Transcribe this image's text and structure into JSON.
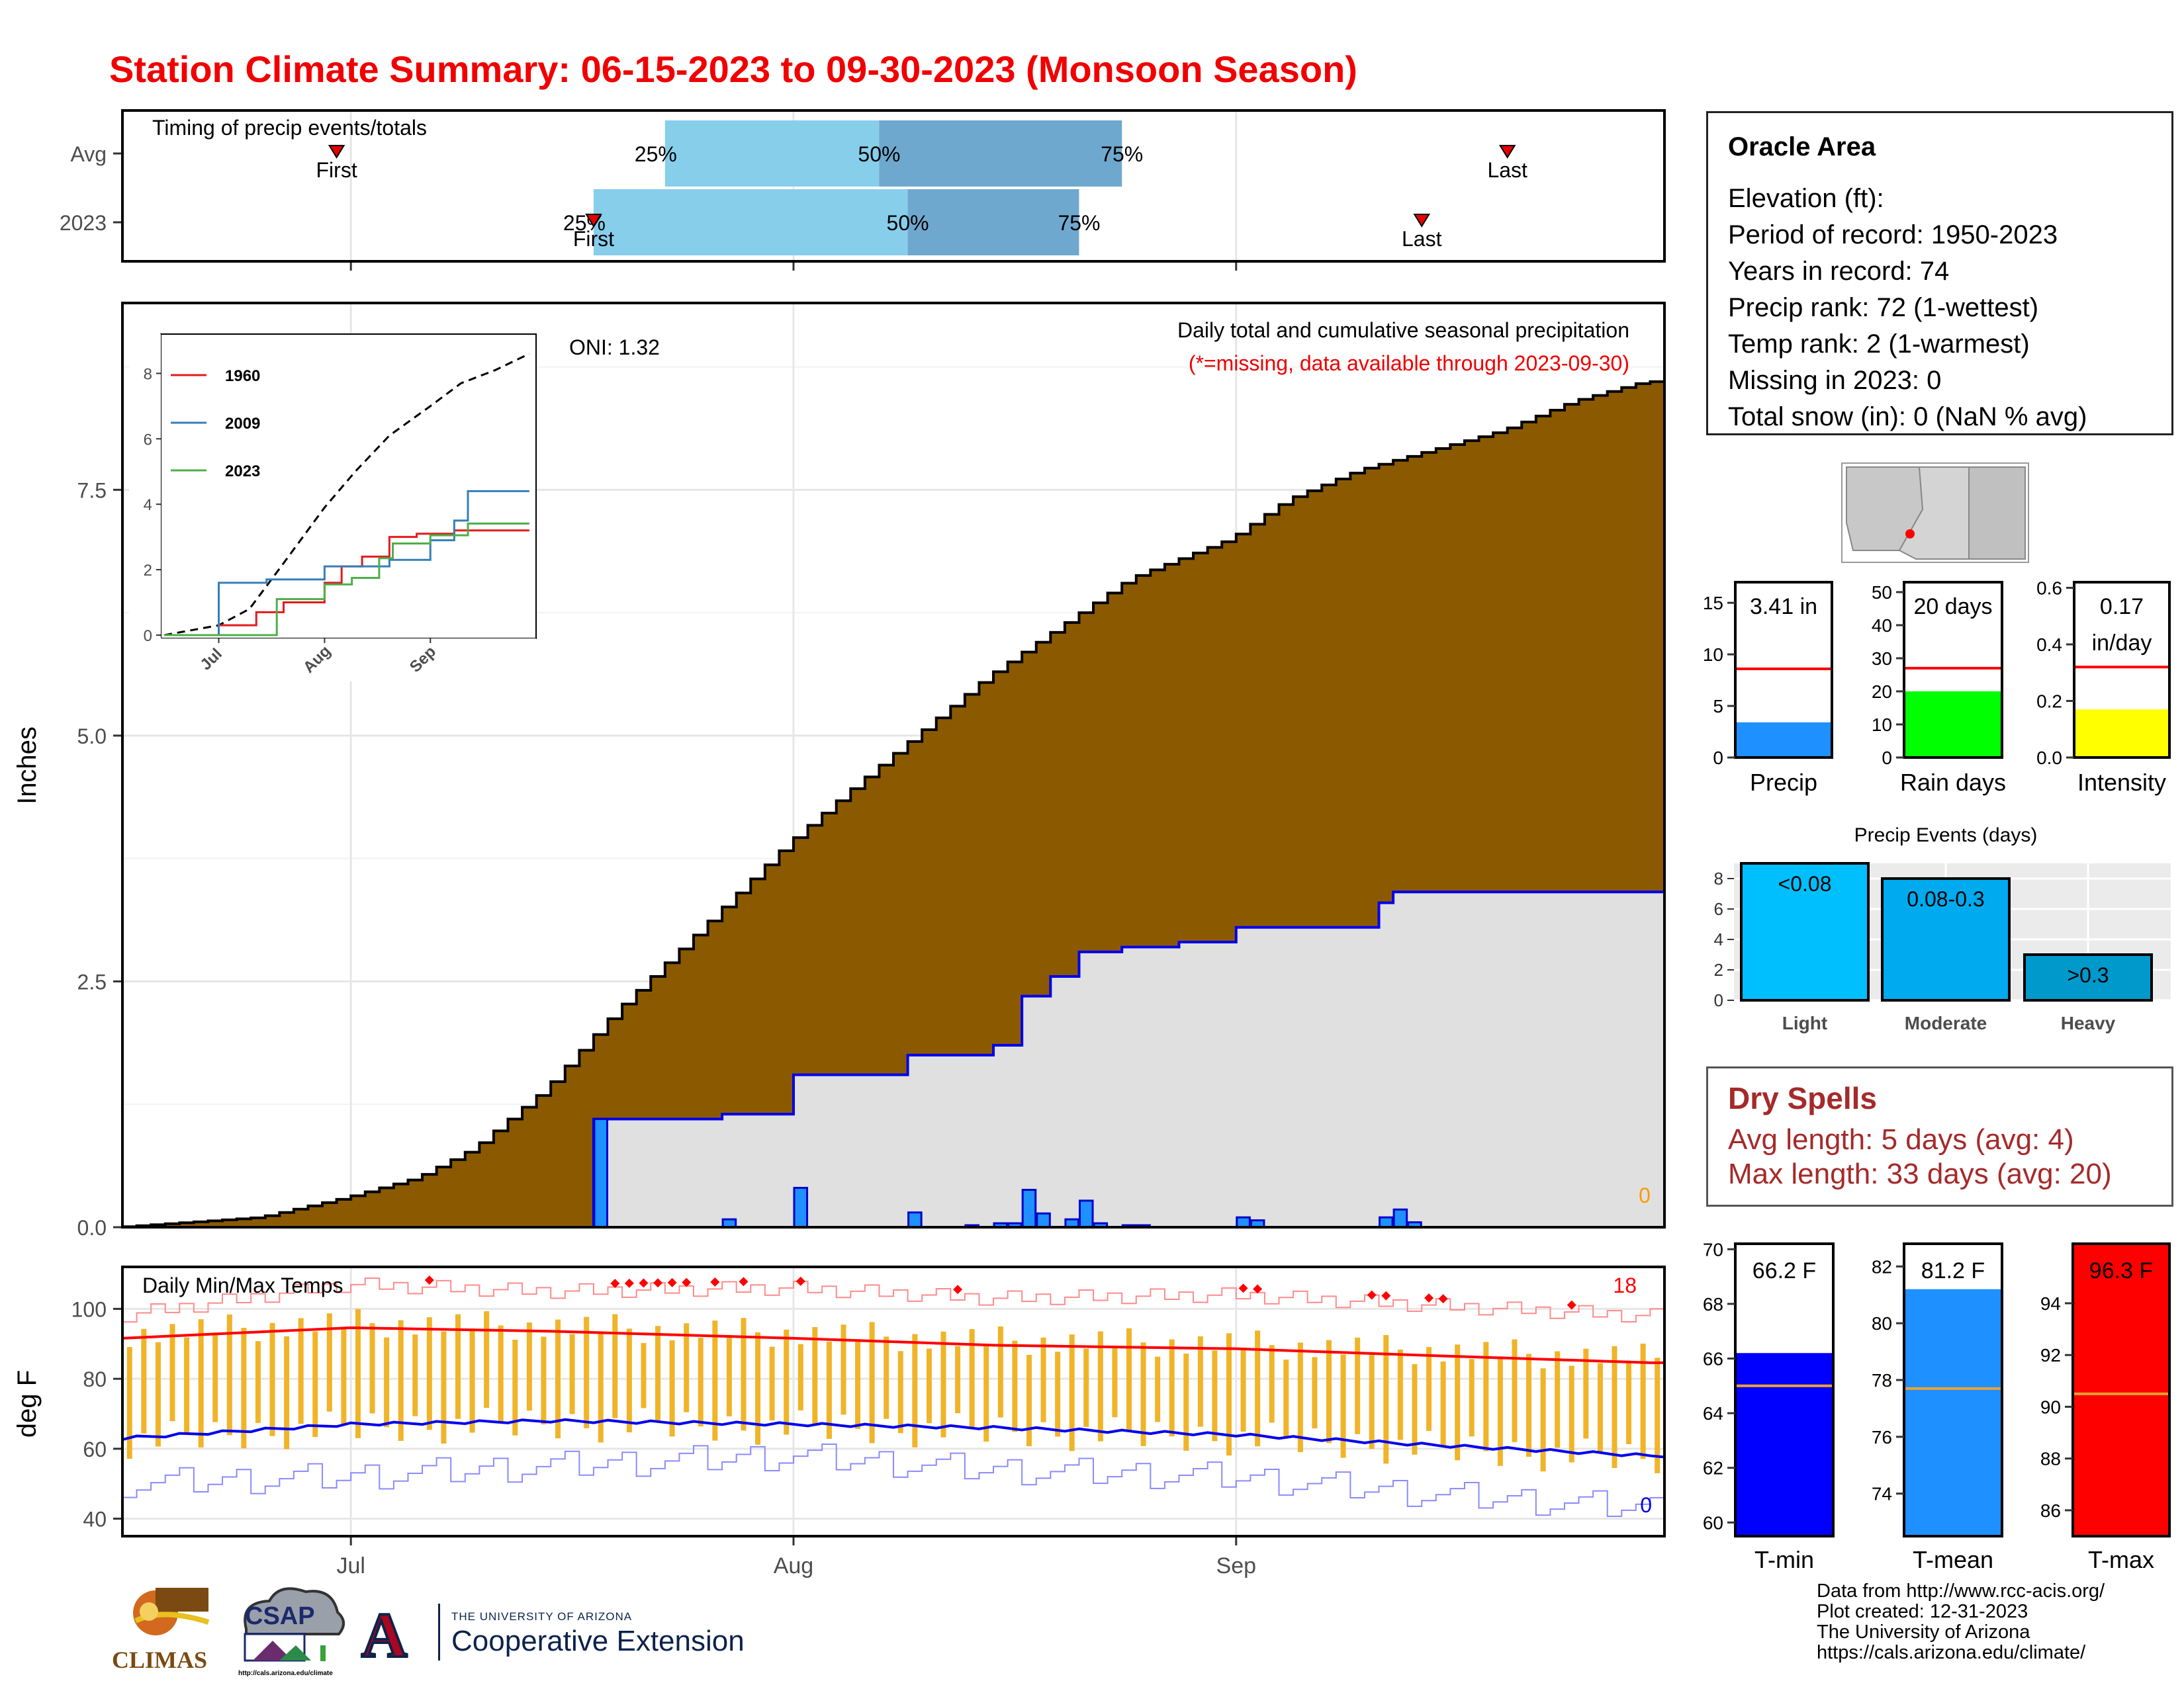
{
  "title": "Station Climate Summary: 06-15-2023 to 09-30-2023 (Monsoon Season)",
  "season": {
    "start": "2023-06-15",
    "end": "2023-09-30",
    "month_ticks": [
      {
        "label": "Jul",
        "date": "2023-07-01"
      },
      {
        "label": "Aug",
        "date": "2023-08-01"
      },
      {
        "label": "Sep",
        "date": "2023-09-01"
      }
    ]
  },
  "timing_panel": {
    "caption": "Timing of precip events/totals",
    "rows": [
      {
        "label": "Avg",
        "first": "2023-06-30",
        "p25": "2023-07-23",
        "p50": "2023-08-07",
        "p75": "2023-08-24",
        "last": "2023-09-20",
        "tags": {
          "first": "First",
          "p25": "25%",
          "p50": "50%",
          "p75": "75%",
          "last": "Last"
        }
      },
      {
        "label": "2023",
        "first": "2023-07-18",
        "p25": "2023-07-18",
        "p50": "2023-08-09",
        "p75": "2023-08-21",
        "last": "2023-09-14",
        "tags": {
          "first": "First",
          "p25": "25%",
          "p50": "50%",
          "p75": "75%",
          "last": "Last"
        }
      }
    ],
    "colors": {
      "first_half": "#87ceeb",
      "second_half": "#6fa8cf",
      "marker": "#e60000"
    }
  },
  "precip_panel": {
    "ylabel": "Inches",
    "title": "Daily total and cumulative seasonal precipitation",
    "subtitle": "(*=missing, data available through 2023-09-30)",
    "oni": "ONI: 1.32",
    "missing_count": "0",
    "yticks": [
      "0.0",
      "2.5",
      "5.0",
      "7.5"
    ],
    "ylim": [
      0,
      9.4
    ],
    "colors": {
      "avg_fill": "#8b5a00",
      "obs_fill": "#e0e0e0",
      "obs_line": "#0000ee",
      "daily_bar": "#1e90ff",
      "missing": "#ff9900"
    },
    "avg_cumulative": [
      {
        "x": "2023-06-15",
        "y": 0.0
      },
      {
        "x": "2023-06-20",
        "y": 0.05
      },
      {
        "x": "2023-06-25",
        "y": 0.1
      },
      {
        "x": "2023-07-01",
        "y": 0.3
      },
      {
        "x": "2023-07-06",
        "y": 0.5
      },
      {
        "x": "2023-07-10",
        "y": 0.8
      },
      {
        "x": "2023-07-15",
        "y": 1.4
      },
      {
        "x": "2023-07-20",
        "y": 2.2
      },
      {
        "x": "2023-07-25",
        "y": 2.9
      },
      {
        "x": "2023-08-01",
        "y": 3.9
      },
      {
        "x": "2023-08-05",
        "y": 4.4
      },
      {
        "x": "2023-08-10",
        "y": 5.0
      },
      {
        "x": "2023-08-15",
        "y": 5.6
      },
      {
        "x": "2023-08-20",
        "y": 6.1
      },
      {
        "x": "2023-08-25",
        "y": 6.6
      },
      {
        "x": "2023-09-01",
        "y": 7.0
      },
      {
        "x": "2023-09-05",
        "y": 7.4
      },
      {
        "x": "2023-09-10",
        "y": 7.7
      },
      {
        "x": "2023-09-15",
        "y": 7.9
      },
      {
        "x": "2023-09-20",
        "y": 8.1
      },
      {
        "x": "2023-09-25",
        "y": 8.4
      },
      {
        "x": "2023-09-30",
        "y": 8.6
      }
    ],
    "obs_cumulative": [
      {
        "x": "2023-06-15",
        "y": 0.0
      },
      {
        "x": "2023-07-17",
        "y": 0.0
      },
      {
        "x": "2023-07-18",
        "y": 1.1
      },
      {
        "x": "2023-07-27",
        "y": 1.15
      },
      {
        "x": "2023-08-01",
        "y": 1.55
      },
      {
        "x": "2023-08-09",
        "y": 1.75
      },
      {
        "x": "2023-08-15",
        "y": 1.85
      },
      {
        "x": "2023-08-17",
        "y": 2.35
      },
      {
        "x": "2023-08-19",
        "y": 2.55
      },
      {
        "x": "2023-08-21",
        "y": 2.8
      },
      {
        "x": "2023-08-24",
        "y": 2.85
      },
      {
        "x": "2023-08-28",
        "y": 2.9
      },
      {
        "x": "2023-09-01",
        "y": 3.05
      },
      {
        "x": "2023-09-11",
        "y": 3.3
      },
      {
        "x": "2023-09-12",
        "y": 3.41
      },
      {
        "x": "2023-09-30",
        "y": 3.41
      }
    ],
    "daily_precip": [
      {
        "x": "2023-07-18",
        "y": 1.1
      },
      {
        "x": "2023-07-27",
        "y": 0.08
      },
      {
        "x": "2023-08-01",
        "y": 0.4
      },
      {
        "x": "2023-08-09",
        "y": 0.15
      },
      {
        "x": "2023-08-13",
        "y": 0.02
      },
      {
        "x": "2023-08-15",
        "y": 0.04
      },
      {
        "x": "2023-08-16",
        "y": 0.04
      },
      {
        "x": "2023-08-17",
        "y": 0.38
      },
      {
        "x": "2023-08-18",
        "y": 0.14
      },
      {
        "x": "2023-08-20",
        "y": 0.08
      },
      {
        "x": "2023-08-21",
        "y": 0.27
      },
      {
        "x": "2023-08-22",
        "y": 0.04
      },
      {
        "x": "2023-08-24",
        "y": 0.02
      },
      {
        "x": "2023-08-25",
        "y": 0.02
      },
      {
        "x": "2023-09-01",
        "y": 0.1
      },
      {
        "x": "2023-09-02",
        "y": 0.07
      },
      {
        "x": "2023-09-11",
        "y": 0.1
      },
      {
        "x": "2023-09-12",
        "y": 0.18
      },
      {
        "x": "2023-09-13",
        "y": 0.05
      }
    ]
  },
  "inset": {
    "yticks": [
      "0",
      "2",
      "4",
      "6",
      "8"
    ],
    "xticks": [
      "Jul",
      "Aug",
      "Sep"
    ],
    "series": [
      {
        "name": "1960",
        "color": "#e41a1c",
        "points": [
          {
            "x": "2023-06-15",
            "y": 0
          },
          {
            "x": "2023-07-01",
            "y": 0.3
          },
          {
            "x": "2023-07-12",
            "y": 0.7
          },
          {
            "x": "2023-07-20",
            "y": 1.0
          },
          {
            "x": "2023-08-01",
            "y": 1.6
          },
          {
            "x": "2023-08-06",
            "y": 2.1
          },
          {
            "x": "2023-08-12",
            "y": 2.4
          },
          {
            "x": "2023-08-20",
            "y": 3.0
          },
          {
            "x": "2023-08-28",
            "y": 3.1
          },
          {
            "x": "2023-09-08",
            "y": 3.2
          },
          {
            "x": "2023-09-30",
            "y": 3.2
          }
        ]
      },
      {
        "name": "2009",
        "color": "#377eb8",
        "points": [
          {
            "x": "2023-06-15",
            "y": 0
          },
          {
            "x": "2023-06-30",
            "y": 0
          },
          {
            "x": "2023-07-01",
            "y": 1.6
          },
          {
            "x": "2023-07-15",
            "y": 1.7
          },
          {
            "x": "2023-08-01",
            "y": 2.1
          },
          {
            "x": "2023-08-20",
            "y": 2.3
          },
          {
            "x": "2023-09-01",
            "y": 2.9
          },
          {
            "x": "2023-09-08",
            "y": 3.5
          },
          {
            "x": "2023-09-12",
            "y": 4.4
          },
          {
            "x": "2023-09-30",
            "y": 4.4
          }
        ]
      },
      {
        "name": "2023",
        "color": "#4daf4a",
        "points": [
          {
            "x": "2023-06-15",
            "y": 0
          },
          {
            "x": "2023-07-17",
            "y": 0
          },
          {
            "x": "2023-07-18",
            "y": 1.1
          },
          {
            "x": "2023-08-01",
            "y": 1.55
          },
          {
            "x": "2023-08-09",
            "y": 1.75
          },
          {
            "x": "2023-08-17",
            "y": 2.35
          },
          {
            "x": "2023-08-21",
            "y": 2.8
          },
          {
            "x": "2023-09-01",
            "y": 3.05
          },
          {
            "x": "2023-09-12",
            "y": 3.41
          },
          {
            "x": "2023-09-30",
            "y": 3.41
          }
        ]
      }
    ],
    "avg_points": [
      {
        "x": "2023-06-15",
        "y": 0.0
      },
      {
        "x": "2023-07-01",
        "y": 0.3
      },
      {
        "x": "2023-07-10",
        "y": 0.8
      },
      {
        "x": "2023-07-20",
        "y": 2.2
      },
      {
        "x": "2023-08-01",
        "y": 3.9
      },
      {
        "x": "2023-08-10",
        "y": 5.0
      },
      {
        "x": "2023-08-20",
        "y": 6.1
      },
      {
        "x": "2023-09-01",
        "y": 7.0
      },
      {
        "x": "2023-09-10",
        "y": 7.7
      },
      {
        "x": "2023-09-20",
        "y": 8.1
      },
      {
        "x": "2023-09-30",
        "y": 8.6
      }
    ]
  },
  "temp_panel": {
    "ylabel": "deg F",
    "caption": "Daily Min/Max Temps",
    "count_hot": "18",
    "count_cold": "0",
    "yticks": [
      "40",
      "60",
      "80",
      "100"
    ],
    "ylim": [
      35,
      112
    ],
    "colors": {
      "bar": "#f0b429",
      "avg_max": "#ff0000",
      "avg_min": "#0000ee",
      "rec_max": "#ff8a8a",
      "rec_min": "#8a8aff",
      "record_dot": "#ff0000"
    },
    "avg_max": [
      {
        "x": "2023-06-15",
        "y": 92
      },
      {
        "x": "2023-07-01",
        "y": 95
      },
      {
        "x": "2023-07-15",
        "y": 94
      },
      {
        "x": "2023-08-01",
        "y": 92
      },
      {
        "x": "2023-08-15",
        "y": 90
      },
      {
        "x": "2023-09-01",
        "y": 89
      },
      {
        "x": "2023-09-15",
        "y": 87
      },
      {
        "x": "2023-09-30",
        "y": 85
      }
    ],
    "avg_min": [
      {
        "x": "2023-06-15",
        "y": 63
      },
      {
        "x": "2023-07-01",
        "y": 67
      },
      {
        "x": "2023-07-15",
        "y": 68
      },
      {
        "x": "2023-08-01",
        "y": 67
      },
      {
        "x": "2023-08-15",
        "y": 66
      },
      {
        "x": "2023-09-01",
        "y": 64
      },
      {
        "x": "2023-09-15",
        "y": 61
      },
      {
        "x": "2023-09-30",
        "y": 58
      }
    ],
    "rec_max": [
      {
        "x": "2023-06-15",
        "y": 98
      },
      {
        "x": "2023-07-01",
        "y": 107
      },
      {
        "x": "2023-07-15",
        "y": 105
      },
      {
        "x": "2023-08-01",
        "y": 106
      },
      {
        "x": "2023-08-15",
        "y": 103
      },
      {
        "x": "2023-09-01",
        "y": 104
      },
      {
        "x": "2023-09-15",
        "y": 101
      },
      {
        "x": "2023-09-30",
        "y": 98
      }
    ],
    "rec_min": [
      {
        "x": "2023-06-15",
        "y": 50
      },
      {
        "x": "2023-07-01",
        "y": 52
      },
      {
        "x": "2023-07-15",
        "y": 55
      },
      {
        "x": "2023-08-01",
        "y": 58
      },
      {
        "x": "2023-08-15",
        "y": 54
      },
      {
        "x": "2023-09-01",
        "y": 52
      },
      {
        "x": "2023-09-15",
        "y": 47
      },
      {
        "x": "2023-09-30",
        "y": 43
      }
    ]
  },
  "info_box": {
    "station": "Oracle Area",
    "lines": [
      "Elevation (ft):",
      "Period of record: 1950-2023",
      "Years in record: 74",
      "Precip rank: 72 (1-wettest)",
      "Temp rank: 2 (1-warmest)",
      "Missing in 2023: 0",
      "Total snow (in): 0 (NaN % avg)"
    ]
  },
  "mini_bars": [
    {
      "label": "Precip",
      "value": 3.41,
      "avg": 8.6,
      "ymax": 17,
      "yticks": [
        0,
        5,
        10,
        15
      ],
      "color": "#1e90ff",
      "value_text": "3.41 in"
    },
    {
      "label": "Rain days",
      "value": 20,
      "avg": 27,
      "ymax": 53,
      "yticks": [
        0,
        10,
        20,
        30,
        40,
        50
      ],
      "color": "#00ff00",
      "value_text": "20 days"
    },
    {
      "label": "Intensity",
      "value": 0.17,
      "avg": 0.32,
      "ymax": 0.62,
      "yticks": [
        0.0,
        0.2,
        0.4,
        0.6
      ],
      "color": "#ffff00",
      "value_text": "0.17\nin/day"
    }
  ],
  "precip_events": {
    "title": "Precip Events (days)",
    "yticks": [
      0,
      2,
      4,
      6,
      8
    ],
    "ymax": 9,
    "bars": [
      {
        "category": "Light",
        "value": 9,
        "label": "<0.08",
        "color": "#00bfff"
      },
      {
        "category": "Moderate",
        "value": 8,
        "label": "0.08-0.3",
        "color": "#00aaee"
      },
      {
        "category": "Heavy",
        "value": 3,
        "label": ">0.3",
        "color": "#0099cc"
      }
    ]
  },
  "dry_spells": {
    "title": "Dry Spells",
    "lines": [
      "Avg length: 5 days (avg: 4)",
      "Max length: 33 days (avg: 20)"
    ],
    "color": "#a52a2a"
  },
  "temp_bars": [
    {
      "label": "T-min",
      "value": 66.2,
      "avg": 65.0,
      "ylim": [
        59.5,
        70.2
      ],
      "yticks": [
        60,
        62,
        64,
        66,
        68,
        70
      ],
      "color": "#0000ff",
      "value_text": "66.2 F"
    },
    {
      "label": "T-mean",
      "value": 81.2,
      "avg": 77.7,
      "ylim": [
        72.5,
        82.8
      ],
      "yticks": [
        74,
        76,
        78,
        80,
        82
      ],
      "color": "#1e90ff",
      "value_text": "81.2 F"
    },
    {
      "label": "T-max",
      "value": 96.3,
      "avg": 90.5,
      "ylim": [
        85.0,
        96.3
      ],
      "yticks": [
        86,
        88,
        90,
        92,
        94
      ],
      "color": "#ff0000",
      "value_text": "96.3 F"
    }
  ],
  "credits": [
    "Data from http://www.rcc-acis.org/",
    "Plot created: 12-31-2023",
    "The University of Arizona",
    "https://cals.arizona.edu/climate/"
  ],
  "logos": {
    "climas": "CLIMAS",
    "csap": "CSAP",
    "csap_url": "http://cals.arizona.edu/climate",
    "ua_line1": "THE UNIVERSITY OF ARIZONA",
    "ua_line2": "Cooperative Extension",
    "ua_letter": "A"
  }
}
